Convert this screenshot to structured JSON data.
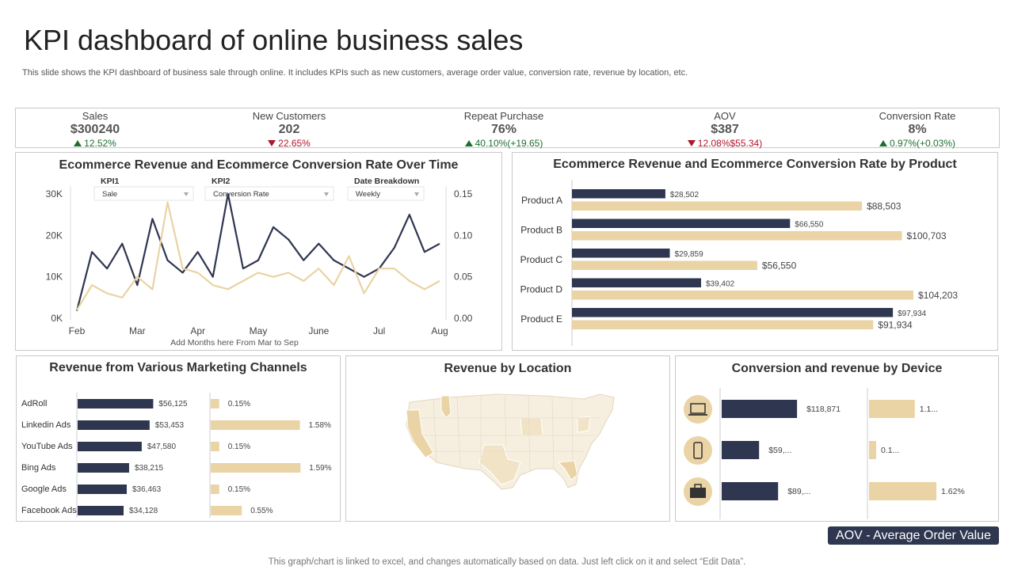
{
  "header": {
    "title": "KPI dashboard of online business sales",
    "subtitle": "This slide shows the KPI dashboard of business sale through online. It includes KPIs such as new customers, average order value, conversion rate, revenue by location, etc."
  },
  "kpis": [
    {
      "label": "Sales",
      "value": "$300240",
      "change": "12.52%",
      "direction": "up"
    },
    {
      "label": "New Customers",
      "value": "202",
      "change": "22.65%",
      "direction": "down"
    },
    {
      "label": "Repeat Purchase",
      "value": "76%",
      "change": "40.10%(+19.65)",
      "direction": "up"
    },
    {
      "label": "AOV",
      "value": "$387",
      "change": "12.08%$55.34)",
      "direction": "down"
    },
    {
      "label": "Conversion  Rate",
      "value": "8%",
      "change": "0.97%(+0.03%)",
      "direction": "up"
    }
  ],
  "colors": {
    "navy": "#2e3650",
    "tan": "#ead3a4",
    "accent_dark": "#2e3650"
  },
  "chart_data": [
    {
      "id": "over-time",
      "type": "line",
      "title": "Ecommerce Revenue and Ecommerce Conversion Rate Over Time",
      "controls": [
        {
          "label": "KPI1",
          "value": "Sale"
        },
        {
          "label": "KPI2",
          "value": "Conversion Rate"
        },
        {
          "label": "Date Breakdown",
          "value": "Weekly"
        }
      ],
      "x_ticks": [
        "Feb",
        "Mar",
        "Apr",
        "May",
        "June",
        "Jul",
        "Aug"
      ],
      "y_ticks_left": [
        "0K",
        "10K",
        "20K",
        "30K"
      ],
      "y_ticks_right": [
        "0.00",
        "0.05",
        "0.10",
        "0.15"
      ],
      "ylim_left": [
        0,
        30000
      ],
      "ylim_right": [
        0,
        0.15
      ],
      "xlabel": "Add Months here From Mar to Sep",
      "series": [
        {
          "name": "Sale",
          "axis": "left",
          "color": "#2e3650",
          "values": [
            1800,
            16000,
            12000,
            18000,
            8000,
            24000,
            14000,
            11000,
            16000,
            10000,
            30000,
            12000,
            14000,
            22000,
            19000,
            14000,
            18000,
            14000,
            12000,
            10000,
            12000,
            17000,
            25000,
            16000,
            18000
          ]
        },
        {
          "name": "Conversion Rate",
          "axis": "right",
          "color": "#ead3a4",
          "values": [
            0.01,
            0.04,
            0.03,
            0.025,
            0.05,
            0.035,
            0.14,
            0.06,
            0.055,
            0.04,
            0.035,
            0.045,
            0.055,
            0.05,
            0.055,
            0.045,
            0.06,
            0.04,
            0.075,
            0.03,
            0.06,
            0.06,
            0.045,
            0.035,
            0.045
          ]
        }
      ]
    },
    {
      "id": "by-product",
      "type": "bar",
      "title": "Ecommerce Revenue and Ecommerce Conversion Rate by Product",
      "categories": [
        "Product A",
        "Product B",
        "Product C",
        "Product D",
        "Product E"
      ],
      "xlim": [
        0,
        110000
      ],
      "series": [
        {
          "name": "Revenue",
          "color": "#2e3650",
          "values": [
            28502,
            66550,
            29859,
            39402,
            97934
          ],
          "labels": [
            "$28,502",
            "$66,550",
            "$29,859",
            "$39,402",
            "$97,934"
          ]
        },
        {
          "name": "Conversion",
          "color": "#ead3a4",
          "values": [
            88503,
            100703,
            56550,
            104203,
            91934
          ],
          "labels": [
            "$88,503",
            "$100,703",
            "$56,550",
            "$104,203",
            "$91,934"
          ]
        }
      ]
    },
    {
      "id": "marketing",
      "type": "bar",
      "title": "Revenue from Various Marketing Channels",
      "categories": [
        "AdRoll",
        "Linkedin Ads",
        "YouTube Ads",
        "Bing Ads",
        "Google Ads",
        "Facebook Ads"
      ],
      "xlim_revenue": [
        0,
        60000
      ],
      "xlim_rate": [
        0,
        1.6
      ],
      "series": [
        {
          "name": "Revenue",
          "color": "#2e3650",
          "values": [
            56125,
            53453,
            47580,
            38215,
            36463,
            34128
          ],
          "labels": [
            "$56,125",
            "$53,453",
            "$47,580",
            "$38,215",
            "$36,463",
            "$34,128"
          ]
        },
        {
          "name": "Conversion Rate",
          "color": "#ead3a4",
          "values": [
            0.15,
            1.58,
            0.15,
            1.59,
            0.15,
            0.55
          ],
          "labels": [
            "0.15%",
            "1.58%",
            "0.15%",
            "1.59%",
            "0.15%",
            "0.55%"
          ]
        }
      ]
    },
    {
      "id": "device",
      "type": "bar",
      "title": "Conversion and revenue by Device",
      "categories": [
        "laptop-icon",
        "mobile-icon",
        "briefcase-icon"
      ],
      "xlim_revenue": [
        0,
        200000
      ],
      "xlim_rate": [
        0,
        2.0
      ],
      "series": [
        {
          "name": "Revenue",
          "color": "#2e3650",
          "values": [
            118871,
            59000,
            89000
          ],
          "labels": [
            "$118,871",
            "$59,...",
            "$89,..."
          ]
        },
        {
          "name": "Conversion Rate",
          "color": "#ead3a4",
          "values": [
            1.1,
            0.1,
            1.62
          ],
          "labels": [
            "1.1...",
            "0.1...",
            "1.62%"
          ]
        }
      ]
    }
  ],
  "location": {
    "title": "Revenue by Location"
  },
  "aov_note": "AOV - Average Order Value",
  "footer": "This graph/chart is linked to excel,  and changes automatically based on data. Just left click on it and select “Edit Data”."
}
